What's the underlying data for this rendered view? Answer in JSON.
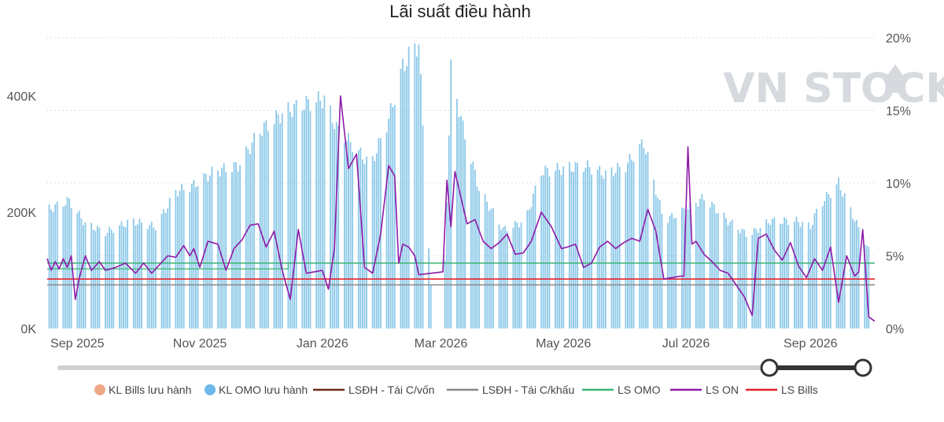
{
  "chart_data": {
    "type": "bar+line",
    "title": "Lãi suất điều hành",
    "y_left": {
      "ticks": [
        "0K",
        "200K",
        "400K"
      ],
      "tick_values": [
        0,
        200000,
        400000
      ],
      "range": [
        0,
        500000
      ]
    },
    "y_right": {
      "ticks": [
        "0%",
        "5%",
        "10%",
        "15%",
        "20%"
      ],
      "tick_values": [
        0,
        5,
        10,
        15,
        20
      ],
      "range": [
        0,
        20
      ]
    },
    "x": {
      "start": "2025-08-17",
      "end": "2026-10-03",
      "tick_labels": [
        "Sep 2025",
        "Nov 2025",
        "Jan 2026",
        "Mar 2026",
        "May 2026",
        "Jul 2026",
        "Sep 2026"
      ],
      "tick_dates": [
        "2025-09-01",
        "2025-11-01",
        "2026-01-01",
        "2026-03-01",
        "2026-05-01",
        "2026-07-01",
        "2026-09-01"
      ]
    },
    "grid": true,
    "legend_position": "bottom",
    "legend": [
      {
        "name": "KL Bills lưu hành",
        "color": "#eea888",
        "kind": "dot"
      },
      {
        "name": "KL OMO lưu hành",
        "color": "#6fb8ea",
        "kind": "dot"
      },
      {
        "name": "LSĐH - Tái C/vốn",
        "color": "#6b2a14",
        "kind": "line"
      },
      {
        "name": "LSĐH - Tái C/khấu",
        "color": "#888888",
        "kind": "line"
      },
      {
        "name": "LS OMO",
        "color": "#3cb371",
        "kind": "line"
      },
      {
        "name": "LS ON",
        "color": "#8e1aa8",
        "kind": "line"
      },
      {
        "name": "LS Bills",
        "color": "#e8202a",
        "kind": "line"
      }
    ],
    "omo_volume_anchors": {
      "dates": [
        "2025-08-18",
        "2025-08-28",
        "2025-09-05",
        "2025-09-15",
        "2025-09-28",
        "2025-10-10",
        "2025-10-20",
        "2025-10-28",
        "2025-11-08",
        "2025-11-20",
        "2025-12-01",
        "2025-12-12",
        "2025-12-22",
        "2026-01-02",
        "2026-01-08",
        "2026-01-15",
        "2026-01-25",
        "2026-02-03",
        "2026-02-10",
        "2026-02-15",
        "2026-02-18",
        "2026-02-25",
        "2026-03-02",
        "2026-03-06",
        "2026-03-12",
        "2026-03-20",
        "2026-04-01",
        "2026-04-12",
        "2026-04-20",
        "2026-05-01",
        "2026-05-12",
        "2026-05-22",
        "2026-06-01",
        "2026-06-10",
        "2026-06-20",
        "2026-07-01",
        "2026-07-10",
        "2026-07-22",
        "2026-08-01",
        "2026-08-12",
        "2026-08-25",
        "2026-09-01",
        "2026-09-05",
        "2026-09-15",
        "2026-09-22",
        "2026-09-30"
      ],
      "values": [
        205000,
        220000,
        180000,
        165000,
        185000,
        175000,
        235000,
        245000,
        270000,
        280000,
        340000,
        370000,
        385000,
        395000,
        345000,
        320000,
        280000,
        360000,
        450000,
        480000,
        490000,
        5000,
        5000,
        445000,
        345000,
        240000,
        170000,
        185000,
        270000,
        275000,
        280000,
        265000,
        280000,
        320000,
        185000,
        205000,
        225000,
        185000,
        160000,
        185000,
        185000,
        175000,
        210000,
        250000,
        195000,
        135000
      ]
    },
    "ls_on_points": {
      "dates": [
        "2025-08-17",
        "2025-08-19",
        "2025-08-21",
        "2025-08-23",
        "2025-08-25",
        "2025-08-27",
        "2025-08-29",
        "2025-08-31",
        "2025-09-02",
        "2025-09-05",
        "2025-09-08",
        "2025-09-12",
        "2025-09-15",
        "2025-09-20",
        "2025-09-25",
        "2025-09-30",
        "2025-10-04",
        "2025-10-08",
        "2025-10-12",
        "2025-10-16",
        "2025-10-20",
        "2025-10-24",
        "2025-10-27",
        "2025-10-29",
        "2025-11-01",
        "2025-11-05",
        "2025-11-10",
        "2025-11-14",
        "2025-11-18",
        "2025-11-22",
        "2025-11-26",
        "2025-11-30",
        "2025-12-04",
        "2025-12-08",
        "2025-12-12",
        "2025-12-16",
        "2025-12-20",
        "2025-12-24",
        "2025-12-28",
        "2026-01-01",
        "2026-01-04",
        "2026-01-07",
        "2026-01-10",
        "2026-01-14",
        "2026-01-18",
        "2026-01-22",
        "2026-01-26",
        "2026-01-30",
        "2026-02-03",
        "2026-02-06",
        "2026-02-08",
        "2026-02-10",
        "2026-02-13",
        "2026-02-16",
        "2026-02-18",
        "2026-03-02",
        "2026-03-04",
        "2026-03-06",
        "2026-03-08",
        "2026-03-14",
        "2026-03-18",
        "2026-03-22",
        "2026-03-26",
        "2026-03-30",
        "2026-04-03",
        "2026-04-07",
        "2026-04-11",
        "2026-04-15",
        "2026-04-20",
        "2026-04-25",
        "2026-04-30",
        "2026-05-03",
        "2026-05-07",
        "2026-05-11",
        "2026-05-15",
        "2026-05-19",
        "2026-05-23",
        "2026-05-27",
        "2026-05-31",
        "2026-06-04",
        "2026-06-08",
        "2026-06-12",
        "2026-06-16",
        "2026-06-20",
        "2026-06-24",
        "2026-06-28",
        "2026-06-30",
        "2026-07-02",
        "2026-07-04",
        "2026-07-06",
        "2026-07-10",
        "2026-07-14",
        "2026-07-18",
        "2026-07-22",
        "2026-07-26",
        "2026-07-30",
        "2026-08-03",
        "2026-08-06",
        "2026-08-10",
        "2026-08-14",
        "2026-08-18",
        "2026-08-22",
        "2026-08-26",
        "2026-08-30",
        "2026-09-03",
        "2026-09-07",
        "2026-09-11",
        "2026-09-15",
        "2026-09-19",
        "2026-09-23",
        "2026-09-25",
        "2026-09-27",
        "2026-09-30",
        "2026-10-03"
      ],
      "values": [
        4.8,
        4.0,
        4.6,
        4.1,
        4.8,
        4.2,
        5.0,
        2.0,
        3.5,
        5.0,
        4.0,
        4.6,
        4.0,
        4.2,
        4.5,
        3.8,
        4.5,
        3.8,
        4.4,
        5.0,
        4.9,
        5.7,
        5.0,
        5.5,
        4.2,
        6.0,
        5.8,
        4.0,
        5.5,
        6.1,
        7.1,
        7.2,
        5.6,
        6.7,
        4.0,
        2.0,
        6.8,
        3.8,
        3.9,
        4.0,
        2.7,
        5.5,
        16.0,
        11.0,
        12.0,
        4.2,
        3.8,
        6.5,
        11.2,
        10.5,
        4.5,
        5.8,
        5.6,
        5.0,
        3.7,
        3.9,
        10.2,
        7.0,
        10.8,
        7.2,
        7.5,
        6.0,
        5.5,
        5.9,
        6.5,
        5.1,
        5.2,
        6.0,
        8.0,
        7.0,
        5.5,
        5.6,
        5.8,
        4.2,
        4.5,
        5.6,
        6.0,
        5.5,
        5.9,
        6.2,
        6.0,
        8.2,
        6.7,
        3.4,
        3.5,
        3.6,
        3.6,
        12.5,
        5.8,
        6.0,
        5.1,
        4.6,
        4.0,
        3.8,
        3.0,
        2.2,
        0.9,
        6.2,
        6.5,
        5.4,
        4.7,
        5.9,
        4.3,
        3.5,
        4.8,
        4.0,
        5.6,
        1.8,
        5.0,
        3.6,
        3.9,
        6.8,
        0.8,
        0.5
      ]
    },
    "reference_lines": [
      {
        "name": "LSĐH - Tái C/vốn",
        "color": "#6b2a14",
        "value": 4.5,
        "from": "2025-08-17",
        "to": "2026-10-03"
      },
      {
        "name": "LSĐH - Tái C/khấu",
        "color": "#888888",
        "value": 3.0,
        "from": "2025-08-17",
        "to": "2026-10-03"
      },
      {
        "name": "LS OMO",
        "color": "#3cb371",
        "value": 4.5,
        "from": "2025-08-17",
        "to": "2026-10-03"
      },
      {
        "name": "LS Bills",
        "color": "#e8202a",
        "value": 3.4,
        "from": "2025-08-17",
        "to": "2026-10-03"
      }
    ],
    "watermark": "VN STOCK"
  }
}
